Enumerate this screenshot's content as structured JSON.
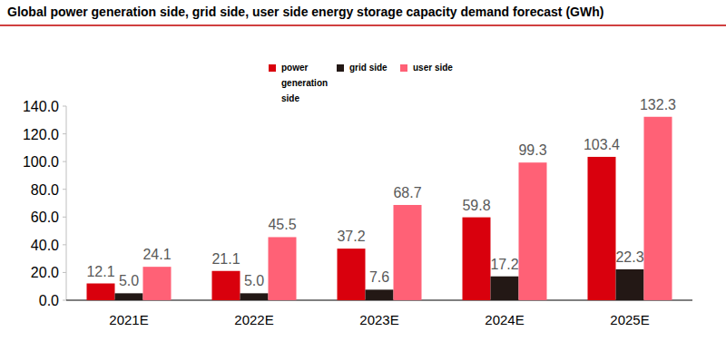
{
  "chart_data": {
    "type": "bar",
    "title": "Global power generation side, grid side, user side energy storage capacity demand forecast (GWh)",
    "categories": [
      "2021E",
      "2022E",
      "2023E",
      "2024E",
      "2025E"
    ],
    "series": [
      {
        "name": "power generation side",
        "color": "#d9000d",
        "values": [
          12.1,
          21.1,
          37.2,
          59.8,
          103.4
        ],
        "value_labels": [
          "12.1",
          "21.1",
          "37.2",
          "59.8",
          "103.4"
        ]
      },
      {
        "name": "grid side",
        "color": "#231815",
        "values": [
          5.0,
          5.0,
          7.6,
          17.2,
          22.3
        ],
        "value_labels": [
          "5.0",
          "5.0",
          "7.6",
          "17.2",
          "22.3"
        ]
      },
      {
        "name": "user side",
        "color": "#ff6176",
        "values": [
          24.1,
          45.5,
          68.7,
          99.3,
          132.3
        ],
        "value_labels": [
          "24.1",
          "45.5",
          "68.7",
          "99.3",
          "132.3"
        ]
      }
    ],
    "ylim": [
      0,
      140
    ],
    "yticks": [
      {
        "value": 0,
        "label": "0.0"
      },
      {
        "value": 20,
        "label": "20.0"
      },
      {
        "value": 40,
        "label": "40.0"
      },
      {
        "value": 60,
        "label": "60.0"
      },
      {
        "value": 80,
        "label": "80.0"
      },
      {
        "value": 100,
        "label": "100.0"
      },
      {
        "value": 120,
        "label": "120.0"
      },
      {
        "value": 140,
        "label": "140.0"
      }
    ],
    "grid": false,
    "legend": "top",
    "data_labels": true
  }
}
